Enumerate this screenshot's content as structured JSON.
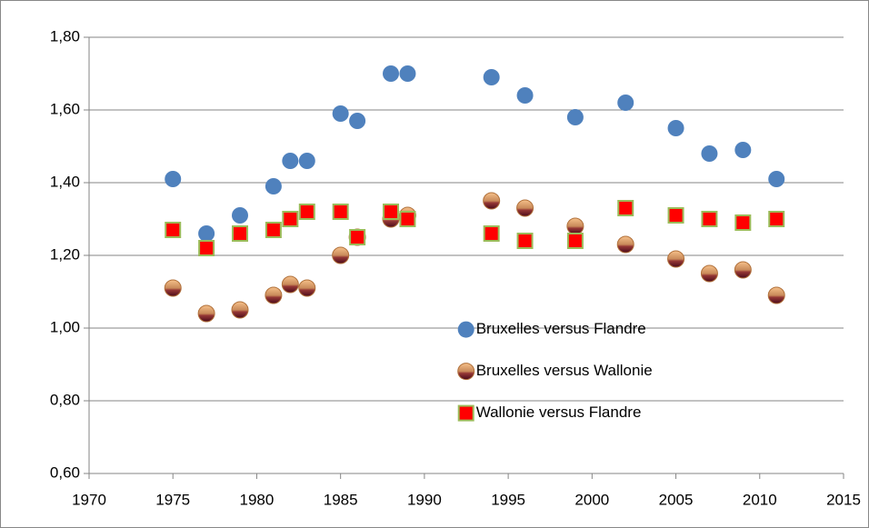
{
  "chart_data": {
    "type": "scatter",
    "x": [
      1975,
      1977,
      1979,
      1981,
      1982,
      1983,
      1985,
      1986,
      1988,
      1989,
      1994,
      1996,
      1999,
      2002,
      2005,
      2007,
      2009,
      2011
    ],
    "series": [
      {
        "name": "Bruxelles versus Flandre",
        "color": "#4f81bd",
        "marker": "circle",
        "values": [
          1.41,
          1.26,
          1.31,
          1.39,
          1.46,
          1.46,
          1.59,
          1.57,
          1.7,
          1.7,
          1.69,
          1.64,
          1.58,
          1.62,
          1.55,
          1.48,
          1.49,
          1.41
        ]
      },
      {
        "name": "Bruxelles versus Wallonie",
        "color": "#953735",
        "marker": "sphere",
        "values": [
          1.11,
          1.04,
          1.05,
          1.09,
          1.12,
          1.11,
          1.2,
          1.25,
          1.3,
          1.31,
          1.35,
          1.33,
          1.28,
          1.23,
          1.19,
          1.15,
          1.16,
          1.09
        ]
      },
      {
        "name": "Wallonie versus Flandre",
        "color": "#ff0000",
        "edgecolor": "#9bbb59",
        "marker": "square",
        "values": [
          1.27,
          1.22,
          1.26,
          1.27,
          1.3,
          1.32,
          1.32,
          1.25,
          1.32,
          1.3,
          1.26,
          1.24,
          1.24,
          1.33,
          1.31,
          1.3,
          1.29,
          1.3
        ]
      }
    ],
    "xlim": [
      1970,
      2015
    ],
    "xticks": [
      1970,
      1975,
      1980,
      1985,
      1990,
      1995,
      2000,
      2005,
      2010,
      2015
    ],
    "ylim": [
      0.6,
      1.8
    ],
    "yticks": [
      {
        "value": 0.6,
        "label": "0,60"
      },
      {
        "value": 0.8,
        "label": "0,80"
      },
      {
        "value": 1.0,
        "label": "1,00"
      },
      {
        "value": 1.2,
        "label": "1,20"
      },
      {
        "value": 1.4,
        "label": "1,40"
      },
      {
        "value": 1.6,
        "label": "1,60"
      },
      {
        "value": 1.8,
        "label": "1,80"
      }
    ],
    "grid": true,
    "legend": "center-right"
  }
}
